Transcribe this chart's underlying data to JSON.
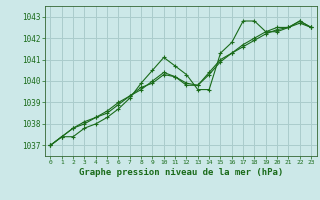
{
  "background_color": "#cce8e8",
  "grid_color": "#aacccc",
  "line_color": "#1a6b1a",
  "title": "Graphe pression niveau de la mer (hPa)",
  "ylim": [
    1036.5,
    1043.5
  ],
  "xlim": [
    -0.5,
    23.5
  ],
  "yticks": [
    1037,
    1038,
    1039,
    1040,
    1041,
    1042,
    1043
  ],
  "xticks": [
    0,
    1,
    2,
    3,
    4,
    5,
    6,
    7,
    8,
    9,
    10,
    11,
    12,
    13,
    14,
    15,
    16,
    17,
    18,
    19,
    20,
    21,
    22,
    23
  ],
  "series": [
    [
      1037.0,
      1037.4,
      1037.4,
      1037.8,
      1038.0,
      1038.3,
      1038.7,
      1039.2,
      1039.9,
      1040.5,
      1041.1,
      1040.7,
      1040.3,
      1039.6,
      1039.6,
      1041.3,
      1041.8,
      1042.8,
      1042.8,
      1042.3,
      1042.3,
      1042.5,
      1042.8,
      1042.5
    ],
    [
      1037.0,
      1037.4,
      1037.8,
      1038.1,
      1038.3,
      1038.5,
      1038.9,
      1039.3,
      1039.7,
      1039.9,
      1040.3,
      1040.2,
      1039.8,
      1039.8,
      1040.4,
      1041.0,
      1041.3,
      1041.7,
      1042.0,
      1042.3,
      1042.5,
      1042.5,
      1042.7,
      1042.5
    ],
    [
      1037.0,
      1037.4,
      1037.8,
      1038.0,
      1038.3,
      1038.6,
      1039.0,
      1039.3,
      1039.6,
      1040.0,
      1040.4,
      1040.2,
      1039.9,
      1039.8,
      1040.3,
      1040.9,
      1041.3,
      1041.6,
      1041.9,
      1042.2,
      1042.4,
      1042.5,
      1042.8,
      1042.5
    ]
  ]
}
